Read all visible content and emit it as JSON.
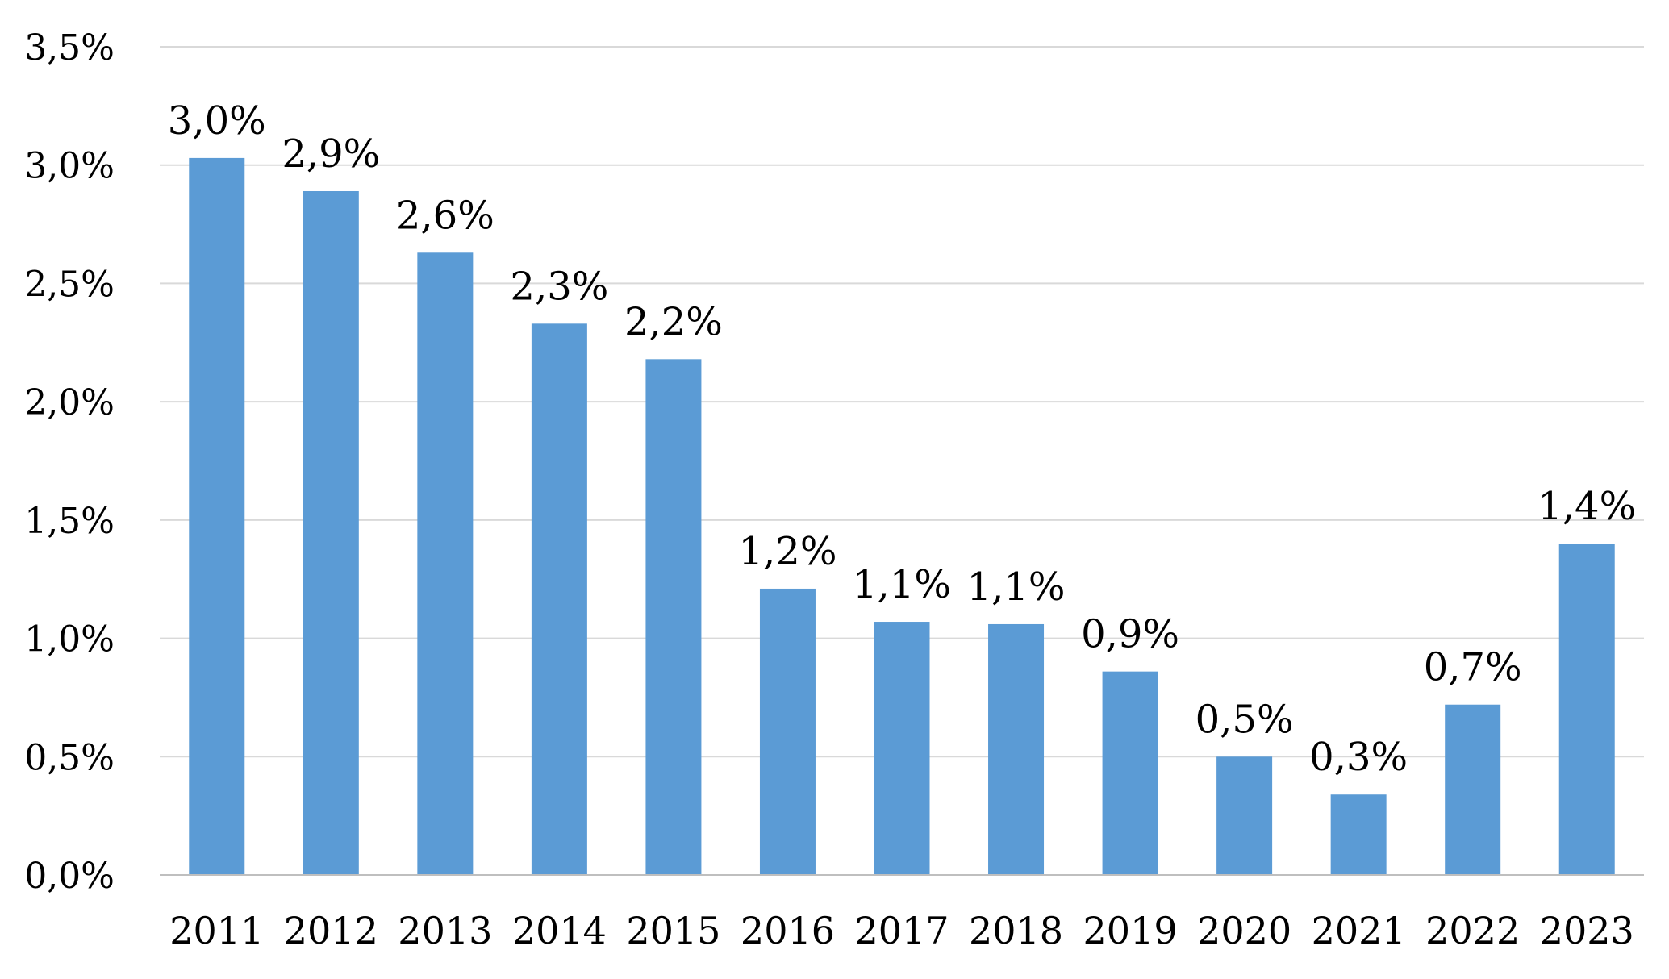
{
  "chart_data": {
    "type": "bar",
    "categories": [
      "2011",
      "2012",
      "2013",
      "2014",
      "2015",
      "2016",
      "2017",
      "2018",
      "2019",
      "2020",
      "2021",
      "2022",
      "2023"
    ],
    "values": [
      3.03,
      2.89,
      2.63,
      2.33,
      2.18,
      1.21,
      1.07,
      1.06,
      0.86,
      0.5,
      0.34,
      0.72,
      1.4
    ],
    "data_labels": [
      "3,0%",
      "2,9%",
      "2,6%",
      "2,3%",
      "2,2%",
      "1,2%",
      "1,1%",
      "1,1%",
      "0,9%",
      "0,5%",
      "0,3%",
      "0,7%",
      "1,4%"
    ],
    "title": "",
    "xlabel": "",
    "ylabel": "",
    "ylim": [
      0,
      3.5
    ],
    "yticks": [
      0,
      0.5,
      1.0,
      1.5,
      2.0,
      2.5,
      3.0,
      3.5
    ],
    "ytick_labels": [
      "0,0%",
      "0,5%",
      "1,0%",
      "1,5%",
      "2,0%",
      "2,5%",
      "3,0%",
      "3,5%"
    ],
    "grid": true,
    "legend": "none",
    "colors": {
      "bar": "#5B9BD5",
      "grid": "#D9D9D9",
      "axis": "#BFBFBF",
      "text": "#000000"
    }
  }
}
